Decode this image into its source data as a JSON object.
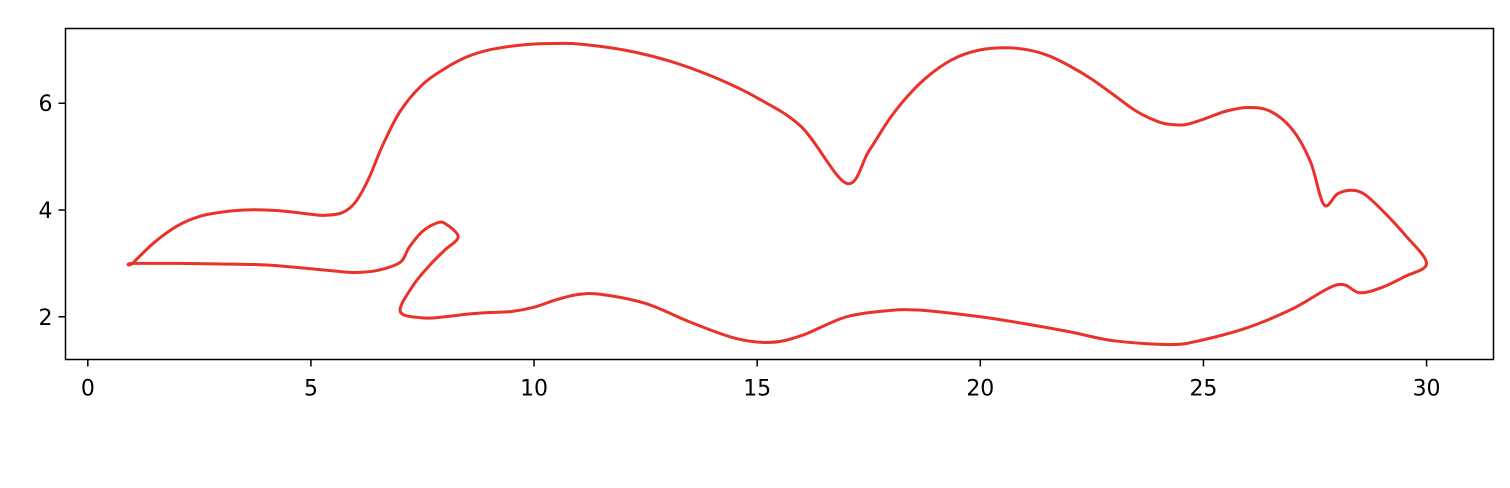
{
  "chart_data": {
    "type": "line",
    "title": "",
    "xlabel": "",
    "ylabel": "",
    "xlim": [
      -0.5,
      31.5
    ],
    "ylim": [
      1.2,
      7.4
    ],
    "grid": false,
    "x_ticks": [
      0,
      5,
      10,
      15,
      20,
      25,
      30
    ],
    "x_tick_labels": [
      "0",
      "5",
      "10",
      "15",
      "20",
      "25",
      "30"
    ],
    "y_ticks": [
      2,
      4,
      6
    ],
    "y_tick_labels": [
      "2",
      "4",
      "6"
    ],
    "line_color": "#e8322a",
    "axes_color": "#000000",
    "background": "#ffffff",
    "series": [
      {
        "closed": true,
        "x": [
          1.0,
          1.5,
          2.0,
          2.5,
          3.0,
          3.5,
          4.0,
          4.5,
          5.0,
          5.3,
          5.7,
          6.0,
          6.3,
          6.6,
          7.0,
          7.5,
          8.0,
          8.5,
          9.0,
          9.5,
          10.0,
          10.5,
          11.0,
          12.0,
          13.0,
          14.0,
          15.0,
          16.0,
          17.0,
          17.5,
          18.0,
          18.5,
          19.0,
          19.5,
          20.0,
          20.5,
          21.0,
          21.5,
          22.0,
          22.5,
          23.0,
          23.5,
          24.0,
          24.3,
          24.6,
          25.0,
          25.5,
          26.0,
          26.5,
          27.0,
          27.4,
          27.7,
          28.0,
          28.3,
          28.6,
          29.0,
          29.5,
          30.0,
          29.5,
          29.0,
          28.5,
          28.0,
          27.0,
          26.0,
          25.0,
          24.3,
          23.0,
          22.0,
          21.0,
          20.0,
          19.0,
          18.5,
          18.0,
          17.0,
          16.0,
          15.3,
          14.5,
          13.5,
          12.5,
          11.5,
          11.0,
          10.5,
          10.0,
          9.5,
          9.0,
          8.5,
          8.0,
          7.5,
          7.0,
          7.3,
          7.7,
          8.0,
          8.3,
          8.0,
          7.8,
          7.5,
          7.2,
          7.0,
          6.5,
          6.0,
          5.5,
          5.0,
          4.0,
          3.0,
          2.0,
          1.0
        ],
        "y": [
          3.0,
          3.4,
          3.7,
          3.88,
          3.96,
          4.0,
          4.0,
          3.97,
          3.92,
          3.9,
          3.95,
          4.15,
          4.6,
          5.2,
          5.85,
          6.35,
          6.65,
          6.87,
          7.0,
          7.07,
          7.11,
          7.12,
          7.11,
          7.0,
          6.8,
          6.5,
          6.1,
          5.55,
          4.5,
          5.1,
          5.75,
          6.25,
          6.62,
          6.87,
          7.0,
          7.04,
          7.01,
          6.9,
          6.7,
          6.45,
          6.15,
          5.85,
          5.65,
          5.6,
          5.6,
          5.7,
          5.85,
          5.92,
          5.85,
          5.5,
          4.9,
          4.1,
          4.3,
          4.37,
          4.3,
          4.0,
          3.55,
          3.0,
          2.75,
          2.55,
          2.45,
          2.6,
          2.15,
          1.8,
          1.57,
          1.48,
          1.55,
          1.72,
          1.87,
          2.0,
          2.1,
          2.13,
          2.12,
          2.0,
          1.65,
          1.52,
          1.6,
          1.9,
          2.25,
          2.42,
          2.42,
          2.32,
          2.18,
          2.1,
          2.08,
          2.05,
          2.0,
          1.98,
          2.1,
          2.6,
          3.0,
          3.25,
          3.5,
          3.75,
          3.75,
          3.6,
          3.3,
          3.02,
          2.87,
          2.83,
          2.86,
          2.9,
          2.97,
          2.99,
          3.0,
          3.0
        ]
      }
    ]
  }
}
